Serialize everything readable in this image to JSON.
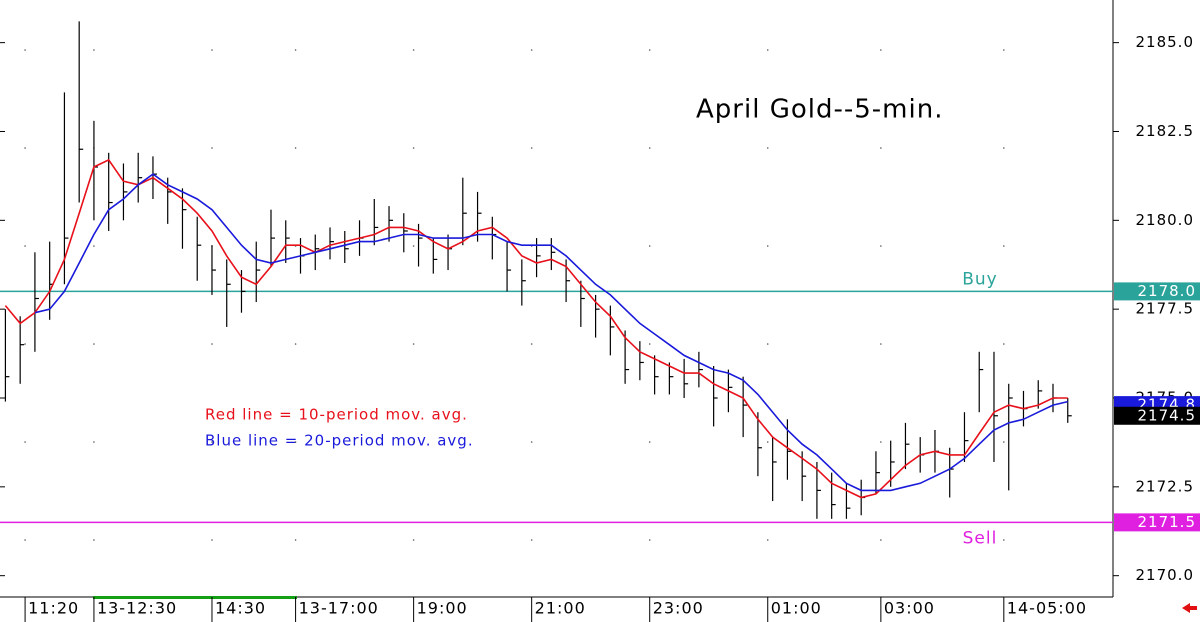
{
  "chart_data": {
    "type": "ohlc",
    "title": "April Gold--5-min.",
    "annotations": [
      "Red line = 10-period mov. avg.",
      "Blue line = 20-period mov. avg."
    ],
    "x": [
      -4,
      -1,
      2,
      5,
      8,
      11,
      14,
      17,
      20,
      23,
      26,
      29,
      32,
      35,
      38,
      41,
      44,
      47,
      50,
      53,
      56,
      59,
      62,
      65,
      68,
      71,
      74,
      77,
      80,
      83,
      86,
      89,
      92,
      95,
      98,
      101,
      104,
      107,
      110,
      113,
      116,
      119,
      122,
      125,
      128,
      131,
      134,
      137,
      140,
      143,
      146,
      149,
      152,
      155,
      158,
      161,
      164,
      167,
      170,
      173,
      176,
      179,
      182,
      185,
      188,
      191,
      194,
      197,
      200,
      203,
      206,
      209,
      212
    ],
    "high": [
      2177.5,
      2177.3,
      2179.1,
      2179.4,
      2183.6,
      2185.6,
      2182.8,
      2181.9,
      2181.6,
      2181.9,
      2181.8,
      2181.2,
      2180.9,
      2180.1,
      2179.3,
      2178.9,
      2178.6,
      2179.4,
      2180.3,
      2180.0,
      2179.5,
      2179.6,
      2179.8,
      2179.7,
      2180.0,
      2180.6,
      2180.4,
      2180.2,
      2179.9,
      2179.5,
      2179.6,
      2181.2,
      2180.8,
      2180.1,
      2179.4,
      2178.9,
      2179.5,
      2179.5,
      2178.9,
      2178.3,
      2177.9,
      2177.6,
      2176.9,
      2176.6,
      2176.2,
      2176.0,
      2176.1,
      2176.3,
      2175.9,
      2175.8,
      2175.6,
      2174.6,
      2173.9,
      2174.4,
      2173.5,
      2173.2,
      2172.9,
      2172.6,
      2172.7,
      2173.5,
      2173.8,
      2174.3,
      2173.9,
      2174.1,
      2173.6,
      2174.6,
      2176.3,
      2176.3,
      2175.4,
      2175.2,
      2175.5,
      2175.4,
      2175.0
    ],
    "low": [
      2174.9,
      2175.4,
      2176.3,
      2177.2,
      2178.2,
      2180.5,
      2180.0,
      2179.7,
      2180.0,
      2180.5,
      2180.6,
      2179.9,
      2179.2,
      2178.3,
      2177.9,
      2177.0,
      2177.4,
      2177.7,
      2178.7,
      2178.8,
      2178.5,
      2178.6,
      2178.9,
      2178.8,
      2179.0,
      2179.3,
      2179.4,
      2179.1,
      2178.7,
      2178.5,
      2178.6,
      2179.3,
      2179.4,
      2178.9,
      2178.0,
      2177.6,
      2178.4,
      2178.6,
      2177.7,
      2177.0,
      2176.7,
      2176.2,
      2175.4,
      2175.5,
      2175.1,
      2175.1,
      2175.0,
      2175.3,
      2174.2,
      2174.6,
      2173.9,
      2172.8,
      2172.1,
      2172.7,
      2172.1,
      2171.6,
      2171.6,
      2171.6,
      2171.7,
      2172.3,
      2172.5,
      2173.0,
      2172.9,
      2172.9,
      2172.2,
      2173.2,
      2174.6,
      2173.2,
      2172.4,
      2174.2,
      2174.7,
      2174.6,
      2174.3
    ],
    "close": [
      2175.6,
      2176.5,
      2177.8,
      2178.2,
      2179.5,
      2182.0,
      2181.5,
      2180.5,
      2180.8,
      2181.2,
      2181.3,
      2180.8,
      2180.3,
      2179.3,
      2178.6,
      2178.2,
      2178.0,
      2178.6,
      2179.5,
      2179.5,
      2179.0,
      2179.2,
      2179.4,
      2179.2,
      2179.5,
      2179.8,
      2180.0,
      2179.7,
      2179.5,
      2178.9,
      2179.2,
      2180.2,
      2180.2,
      2179.6,
      2178.6,
      2178.3,
      2179.0,
      2179.1,
      2178.3,
      2177.8,
      2177.5,
      2177.0,
      2175.8,
      2176.0,
      2175.6,
      2175.6,
      2175.4,
      2175.8,
      2175.0,
      2175.3,
      2174.8,
      2173.6,
      2173.2,
      2173.5,
      2172.8,
      2172.4,
      2172.0,
      2171.9,
      2172.2,
      2172.9,
      2173.2,
      2173.7,
      2173.4,
      2173.5,
      2173.0,
      2173.8,
      2175.8,
      2174.5,
      2175.0,
      2174.7,
      2175.2,
      2175.0,
      2174.5
    ],
    "series": [
      {
        "name": "Red line = 10-period mov. avg.",
        "color": "#e8101a",
        "values": [
          2177.6,
          2177.1,
          2177.4,
          2178.0,
          2178.9,
          2180.2,
          2181.5,
          2181.7,
          2181.1,
          2181.0,
          2181.2,
          2180.9,
          2180.6,
          2180.2,
          2179.7,
          2179.0,
          2178.4,
          2178.2,
          2178.7,
          2179.3,
          2179.3,
          2179.1,
          2179.3,
          2179.4,
          2179.5,
          2179.6,
          2179.8,
          2179.8,
          2179.7,
          2179.4,
          2179.2,
          2179.4,
          2179.7,
          2179.8,
          2179.5,
          2179.0,
          2178.8,
          2178.9,
          2178.7,
          2178.2,
          2177.7,
          2177.3,
          2176.7,
          2176.3,
          2176.1,
          2175.9,
          2175.7,
          2175.7,
          2175.4,
          2175.2,
          2175.0,
          2174.4,
          2173.9,
          2173.6,
          2173.3,
          2173.0,
          2172.6,
          2172.4,
          2172.2,
          2172.3,
          2172.7,
          2173.1,
          2173.4,
          2173.5,
          2173.4,
          2173.4,
          2174.0,
          2174.6,
          2174.8,
          2174.7,
          2174.8,
          2175.0,
          2175.0
        ]
      },
      {
        "name": "Blue line = 20-period mov. avg.",
        "color": "#1a1adb",
        "values": [
          null,
          null,
          2177.4,
          2177.5,
          2178.0,
          2178.8,
          2179.6,
          2180.3,
          2180.6,
          2181.0,
          2181.3,
          2181.0,
          2180.8,
          2180.6,
          2180.3,
          2179.8,
          2179.3,
          2178.9,
          2178.8,
          2178.9,
          2179.0,
          2179.1,
          2179.2,
          2179.3,
          2179.4,
          2179.4,
          2179.5,
          2179.6,
          2179.6,
          2179.5,
          2179.5,
          2179.5,
          2179.6,
          2179.6,
          2179.4,
          2179.3,
          2179.3,
          2179.3,
          2179.0,
          2178.6,
          2178.2,
          2177.9,
          2177.5,
          2177.1,
          2176.8,
          2176.5,
          2176.2,
          2176.0,
          2175.8,
          2175.7,
          2175.5,
          2175.1,
          2174.6,
          2174.1,
          2173.7,
          2173.4,
          2173.0,
          2172.6,
          2172.4,
          2172.4,
          2172.4,
          2172.5,
          2172.6,
          2172.8,
          2173.0,
          2173.3,
          2173.7,
          2174.1,
          2174.3,
          2174.4,
          2174.6,
          2174.8,
          2174.9
        ]
      }
    ],
    "levels": [
      {
        "name": "Buy",
        "value": 2178,
        "label": "2178.0",
        "color": "#2aa39b"
      },
      {
        "name": "Sell",
        "value": 2171.5,
        "color": "#e020e0"
      }
    ],
    "price_markers": [
      {
        "value": 2174.8,
        "color": "#1a1adb"
      },
      {
        "value": 2174.5,
        "color": "#000000"
      }
    ],
    "xlim": [
      -5.1,
      221.2
    ],
    "xticks": [
      {
        "value": 0,
        "label": "11:20"
      },
      {
        "value": 14,
        "label": "13-12:30"
      },
      {
        "value": 38,
        "label": "14:30"
      },
      {
        "value": 55,
        "label": "13-17:00"
      },
      {
        "value": 79,
        "label": "19:00"
      },
      {
        "value": 103,
        "label": "21:00"
      },
      {
        "value": 127,
        "label": "23:00"
      },
      {
        "value": 151,
        "label": "01:00"
      },
      {
        "value": 174,
        "label": "03:00"
      },
      {
        "value": 199,
        "label": "14-05:00"
      }
    ],
    "ylim": [
      2169.4,
      2186.2
    ],
    "yticks": [
      {
        "value": 2170,
        "label": "2170.0"
      },
      2172.5,
      {
        "value": 2175,
        "label": "2175.0"
      },
      2177.5,
      {
        "value": 2180,
        "label": "2180.0"
      },
      2182.5,
      {
        "value": 2185,
        "label": "2185.0"
      }
    ]
  }
}
